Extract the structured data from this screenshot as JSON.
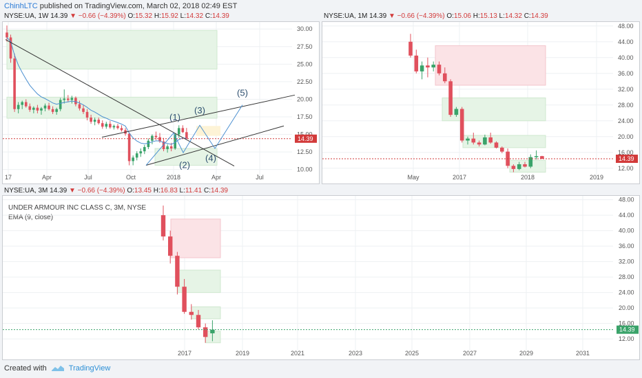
{
  "header": {
    "user": "ChinhLTC",
    "text": "published on TradingView.com, March 02, 2018 02:49 EST"
  },
  "footer": {
    "created_with": "Created with",
    "brand": "TradingView"
  },
  "colors": {
    "up": "#3aa36a",
    "down": "#e0505d",
    "price_line": "#d23a3a",
    "green_zone": "#e6f4e6",
    "red_zone": "#fbe3e6",
    "ema": "#4a8fd0"
  },
  "panels": {
    "p1": {
      "symbol": "NYSE:UA, 1W",
      "last": "14.39",
      "change": "−0.66 (−4.39%)",
      "o": "15.32",
      "h": "15.92",
      "l": "14.32",
      "c": "14.39",
      "wave_labels": [
        "(1)",
        "(2)",
        "(3)",
        "(4)",
        "(5)"
      ]
    },
    "p2": {
      "symbol": "NYSE:UA, 1M",
      "last": "14.39",
      "change": "−0.66 (−4.39%)",
      "o": "15.06",
      "h": "15.13",
      "l": "14.32",
      "c": "14.39"
    },
    "p3": {
      "symbol": "NYSE:UA, 3M",
      "last": "14.39",
      "change": "−0.66 (−4.39%)",
      "o": "13.45",
      "h": "16.83",
      "l": "11.41",
      "c": "14.39",
      "legend_title": "UNDER ARMOUR INC CLASS C, 3M, NYSE",
      "legend_ema": "EMA (9, close)"
    }
  },
  "chart_data": [
    {
      "type": "candlestick",
      "timeframe": "1W",
      "x_ticks": [
        "17",
        "Apr",
        "Jul",
        "Oct",
        "2018",
        "Apr",
        "Jul"
      ],
      "y_ticks": [
        10.0,
        12.5,
        15.0,
        17.5,
        20.0,
        22.5,
        25.0,
        27.5,
        30.0
      ],
      "ylim": [
        8.5,
        31
      ],
      "last_price": 14.39,
      "candles": [
        [
          29.5,
          30.5,
          28.2,
          28.8
        ],
        [
          28.8,
          29.2,
          25.2,
          25.8
        ],
        [
          25.8,
          26.5,
          18.2,
          18.6
        ],
        [
          18.6,
          19.6,
          18.0,
          19.2
        ],
        [
          19.2,
          19.8,
          18.6,
          19.6
        ],
        [
          19.6,
          20.0,
          18.8,
          19.0
        ],
        [
          19.0,
          19.4,
          18.2,
          18.5
        ],
        [
          18.5,
          19.0,
          18.0,
          18.8
        ],
        [
          18.8,
          19.2,
          18.0,
          18.4
        ],
        [
          18.4,
          18.9,
          17.8,
          18.7
        ],
        [
          18.7,
          19.4,
          18.3,
          19.1
        ],
        [
          19.1,
          19.5,
          18.4,
          18.6
        ],
        [
          18.6,
          19.0,
          17.9,
          18.2
        ],
        [
          18.2,
          18.8,
          17.8,
          18.6
        ],
        [
          18.6,
          20.2,
          18.3,
          19.9
        ],
        [
          19.9,
          21.4,
          19.4,
          20.1
        ],
        [
          20.1,
          20.6,
          19.6,
          19.9
        ],
        [
          19.9,
          20.5,
          19.4,
          20.2
        ],
        [
          20.2,
          20.4,
          19.0,
          19.3
        ],
        [
          19.3,
          19.8,
          18.4,
          18.7
        ],
        [
          18.7,
          19.2,
          17.9,
          18.2
        ],
        [
          18.2,
          18.6,
          17.0,
          17.4
        ],
        [
          17.4,
          17.8,
          16.5,
          16.8
        ],
        [
          16.8,
          17.4,
          16.3,
          17.1
        ],
        [
          17.1,
          17.4,
          16.4,
          16.6
        ],
        [
          16.6,
          17.0,
          15.8,
          16.1
        ],
        [
          16.1,
          16.8,
          15.8,
          16.5
        ],
        [
          16.5,
          16.9,
          15.8,
          16.0
        ],
        [
          16.0,
          16.4,
          15.7,
          16.2
        ],
        [
          16.2,
          16.5,
          15.7,
          15.9
        ],
        [
          15.9,
          16.3,
          15.4,
          15.6
        ],
        [
          15.6,
          15.9,
          14.8,
          15.1
        ],
        [
          15.1,
          15.3,
          10.6,
          11.2
        ],
        [
          11.2,
          12.0,
          10.6,
          11.7
        ],
        [
          11.7,
          12.6,
          11.3,
          12.3
        ],
        [
          12.3,
          13.0,
          11.8,
          12.6
        ],
        [
          12.6,
          13.5,
          12.2,
          13.2
        ],
        [
          13.2,
          14.4,
          12.9,
          14.1
        ],
        [
          14.1,
          15.0,
          13.6,
          14.8
        ],
        [
          14.8,
          15.4,
          14.2,
          14.6
        ],
        [
          14.6,
          15.2,
          13.8,
          14.0
        ],
        [
          14.0,
          14.5,
          12.6,
          12.9
        ],
        [
          12.9,
          13.6,
          12.4,
          13.3
        ],
        [
          13.3,
          13.8,
          12.6,
          13.0
        ],
        [
          13.0,
          15.2,
          12.8,
          15.0
        ],
        [
          15.0,
          16.3,
          14.5,
          15.9
        ],
        [
          15.9,
          16.3,
          15.2,
          15.32
        ],
        [
          15.32,
          15.92,
          14.32,
          14.39
        ]
      ]
    },
    {
      "type": "candlestick",
      "timeframe": "1M",
      "x_ticks": [
        "May",
        "2017",
        "2018",
        "2019"
      ],
      "y_ticks": [
        12.0,
        16.0,
        20.0,
        24.0,
        28.0,
        32.0,
        36.0,
        40.0,
        44.0,
        48.0
      ],
      "ylim": [
        9,
        49
      ],
      "last_price": 14.39,
      "candles": [
        [
          44.0,
          46.0,
          40.0,
          40.5
        ],
        [
          40.5,
          42.0,
          36.0,
          36.5
        ],
        [
          36.5,
          39.0,
          34.5,
          38.0
        ],
        [
          38.0,
          40.0,
          35.0,
          37.5
        ],
        [
          37.5,
          39.0,
          36.5,
          38.2
        ],
        [
          38.2,
          39.0,
          35.5,
          36.0
        ],
        [
          36.0,
          37.5,
          33.5,
          34.0
        ],
        [
          34.0,
          34.5,
          25.0,
          25.5
        ],
        [
          25.5,
          27.5,
          25.0,
          27.0
        ],
        [
          27.0,
          27.5,
          18.5,
          19.0
        ],
        [
          19.0,
          20.0,
          18.0,
          19.5
        ],
        [
          19.5,
          21.0,
          18.0,
          18.5
        ],
        [
          18.5,
          19.0,
          17.5,
          18.0
        ],
        [
          18.0,
          20.5,
          17.8,
          19.8
        ],
        [
          19.8,
          21.0,
          18.2,
          18.5
        ],
        [
          18.5,
          18.8,
          17.0,
          17.2
        ],
        [
          17.2,
          17.5,
          15.8,
          16.2
        ],
        [
          16.2,
          17.0,
          12.0,
          12.6
        ],
        [
          12.6,
          13.0,
          11.0,
          11.8
        ],
        [
          11.8,
          13.6,
          11.5,
          13.0
        ],
        [
          13.0,
          13.6,
          12.2,
          12.4
        ],
        [
          12.4,
          15.5,
          12.0,
          14.8
        ],
        [
          14.8,
          16.5,
          14.2,
          15.06
        ],
        [
          15.06,
          15.13,
          14.32,
          14.39
        ]
      ]
    },
    {
      "type": "candlestick",
      "timeframe": "3M",
      "x_ticks": [
        "2017",
        "2019",
        "2021",
        "2023",
        "2025",
        "2027",
        "2029",
        "2031"
      ],
      "y_ticks": [
        12.0,
        16.0,
        20.0,
        24.0,
        28.0,
        32.0,
        36.0,
        40.0,
        44.0,
        48.0
      ],
      "ylim": [
        9,
        49
      ],
      "last_price": 14.39,
      "candles": [
        [
          44.0,
          46.5,
          37.5,
          38.5
        ],
        [
          38.5,
          40.0,
          31.5,
          33.5
        ],
        [
          33.5,
          34.5,
          23.5,
          25.5
        ],
        [
          25.5,
          27.5,
          18.5,
          19.0
        ],
        [
          19.0,
          21.0,
          17.0,
          18.2
        ],
        [
          18.2,
          19.5,
          14.5,
          15.0
        ],
        [
          15.0,
          16.0,
          11.0,
          12.5
        ],
        [
          13.45,
          16.83,
          11.41,
          14.39
        ]
      ]
    }
  ]
}
